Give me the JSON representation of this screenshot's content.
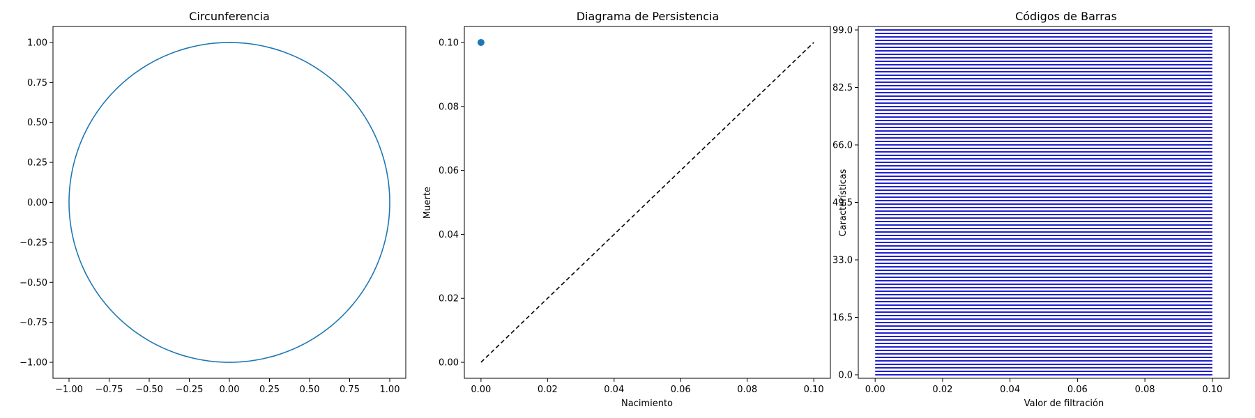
{
  "chart_data": [
    {
      "type": "line",
      "title": "Circunferencia",
      "xlabel": "",
      "ylabel": "",
      "xlim": [
        -1.1,
        1.1
      ],
      "ylim": [
        -1.1,
        1.1
      ],
      "xticks": [
        "−1.00",
        "−0.75",
        "−0.50",
        "−0.25",
        "0.00",
        "0.25",
        "0.50",
        "0.75",
        "1.00"
      ],
      "yticks": [
        "−1.00",
        "−0.75",
        "−0.50",
        "−0.25",
        "0.00",
        "0.25",
        "0.50",
        "0.75",
        "1.00"
      ],
      "series": [
        {
          "kind": "circle",
          "center": [
            0,
            0
          ],
          "radius": 1.0,
          "color": "#1f77b4"
        }
      ],
      "grid": false
    },
    {
      "type": "scatter",
      "title": "Diagrama de Persistencia",
      "xlabel": "Nacimiento",
      "ylabel": "Muerte",
      "xlim": [
        -0.005,
        0.105
      ],
      "ylim": [
        -0.005,
        0.105
      ],
      "xticks": [
        "0.00",
        "0.02",
        "0.04",
        "0.06",
        "0.08",
        "0.10"
      ],
      "yticks": [
        "0.00",
        "0.02",
        "0.04",
        "0.06",
        "0.08",
        "0.10"
      ],
      "points": [
        {
          "x": 0.0,
          "y": 0.1
        }
      ],
      "point_color": "#1f77b4",
      "diagonal": {
        "from": [
          0,
          0
        ],
        "to": [
          0.1,
          0.1
        ],
        "style": "dashed",
        "color": "#000000"
      },
      "grid": false
    },
    {
      "type": "bar",
      "title": "Códigos de Barras",
      "xlabel": "Valor de filtración",
      "ylabel": "Características",
      "xlim": [
        -0.005,
        0.105
      ],
      "ylim": [
        -1,
        100
      ],
      "xticks": [
        "0.00",
        "0.02",
        "0.04",
        "0.06",
        "0.08",
        "0.10"
      ],
      "ytick_values": [
        0.0,
        16.5,
        33.0,
        49.5,
        66.0,
        82.5,
        99.0
      ],
      "yticks": [
        "0.0",
        "16.5",
        "33.0",
        "49.5",
        "66.0",
        "82.5",
        "99.0"
      ],
      "bar_count": 100,
      "bar_start": 0.0,
      "bar_end": 0.1,
      "bar_color": "#0000cc",
      "grid": false
    }
  ]
}
